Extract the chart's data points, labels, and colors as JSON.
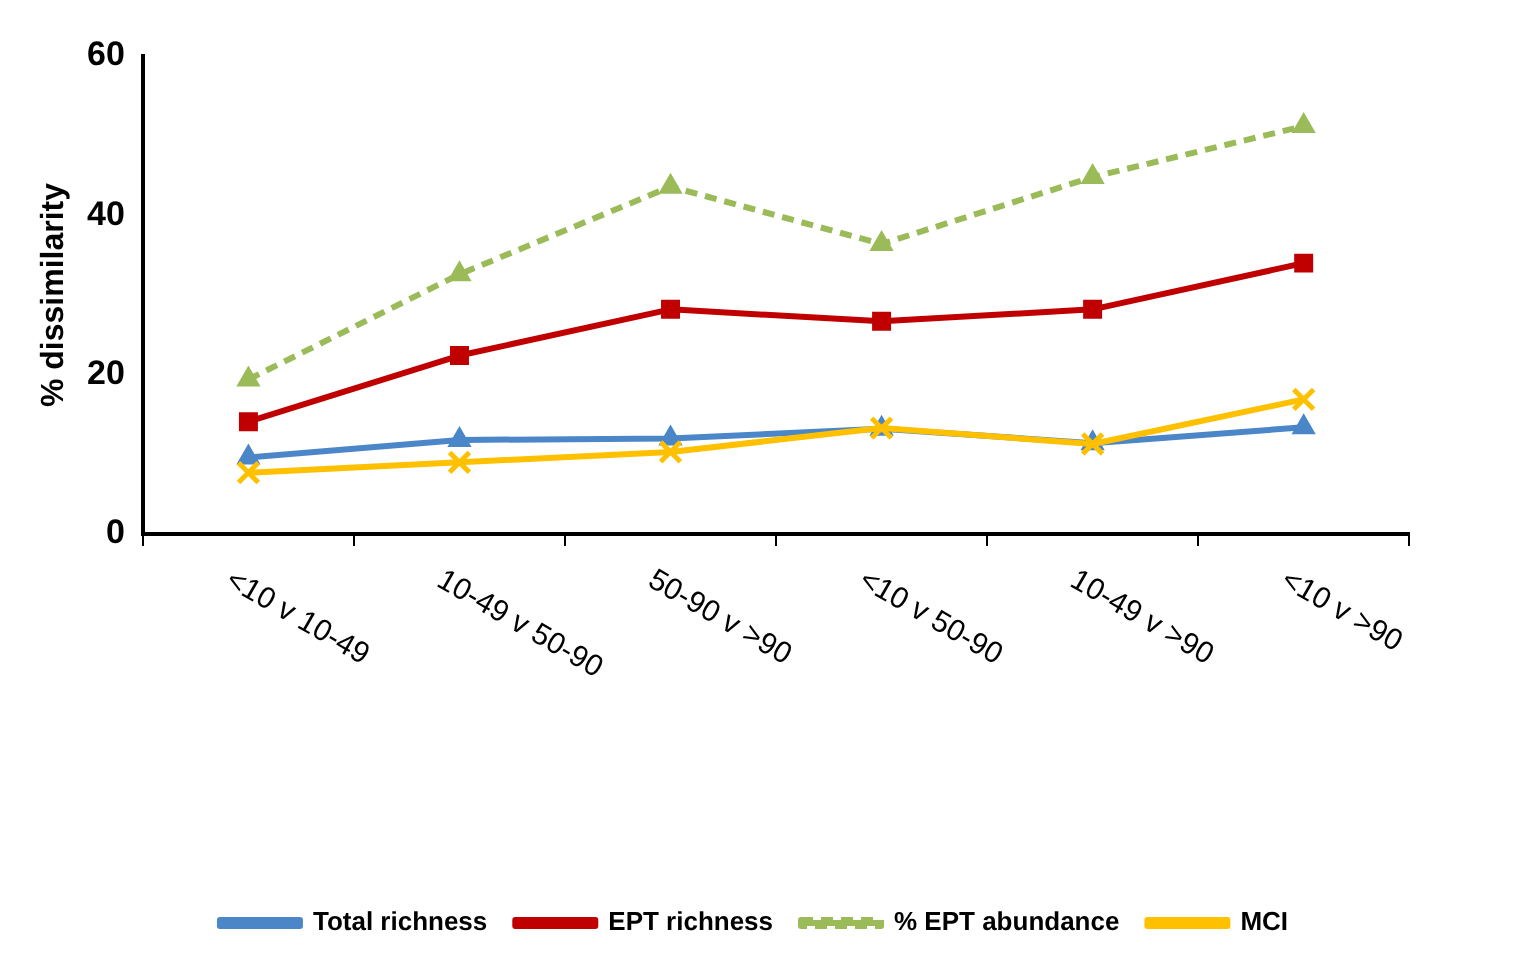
{
  "chart_data": {
    "type": "line",
    "ylabel": "% dissimilarity",
    "categories": [
      "<10 v 10-49",
      "10-49 v 50-90",
      "50-90 v >90",
      "<10 v 50-90",
      "10-49 v >90",
      "<10 v >90"
    ],
    "series": [
      {
        "name": "Total richness",
        "color": "#4a86c8",
        "marker": "triangle",
        "line_style": "solid",
        "values": [
          9.6,
          11.8,
          12,
          13.2,
          11.4,
          13.4
        ]
      },
      {
        "name": "EPT richness",
        "color": "#c00000",
        "marker": "square",
        "line_style": "solid",
        "values": [
          14.1,
          22.4,
          28.2,
          26.7,
          28.2,
          34
        ]
      },
      {
        "name": "% EPT abundance",
        "color": "#9bbb59",
        "marker": "triangle",
        "line_style": "dashed",
        "values": [
          19.4,
          32.6,
          43.6,
          36.4,
          44.8,
          51.2
        ]
      },
      {
        "name": "MCI",
        "color": "#ffc000",
        "marker": "cross",
        "line_style": "solid",
        "values": [
          7.7,
          9,
          10.3,
          13.3,
          11.3,
          16.9
        ]
      }
    ],
    "ylim": [
      0,
      60
    ],
    "yticks": [
      0,
      20,
      40,
      60
    ],
    "grid": false,
    "legend": "bottom"
  }
}
